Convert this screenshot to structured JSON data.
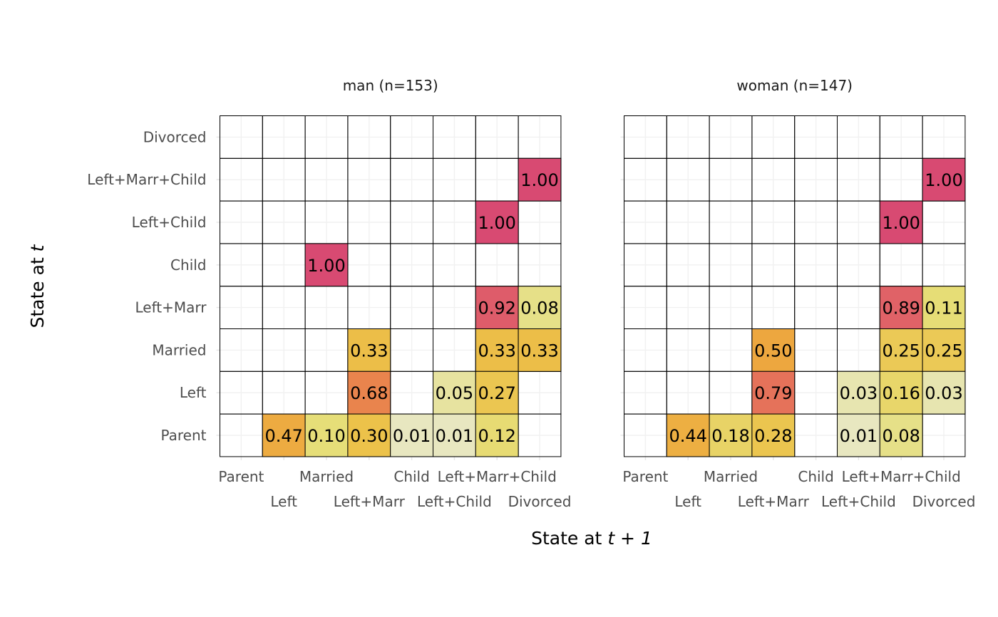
{
  "chart_data": {
    "type": "heatmap",
    "xlabel": "State at",
    "xlabel_var": "t + 1",
    "ylabel": "State at",
    "ylabel_var": "t",
    "states": [
      "Parent",
      "Left",
      "Married",
      "Left+Marr",
      "Child",
      "Left+Child",
      "Left+Marr+Child",
      "Divorced"
    ],
    "value_color_scale": {
      "0.0": "#e8e8c8",
      "0.1": "#e6de78",
      "0.3": "#ecc24a",
      "0.5": "#eda73f",
      "0.7": "#e9804f",
      "0.9": "#e06068",
      "1.0": "#d84a72"
    },
    "panels": [
      {
        "title": "man (n=153)",
        "cells": [
          {
            "from": "Left+Marr+Child",
            "to": "Divorced",
            "value": "1.00"
          },
          {
            "from": "Left+Child",
            "to": "Left+Marr+Child",
            "value": "1.00"
          },
          {
            "from": "Child",
            "to": "Married",
            "value": "1.00"
          },
          {
            "from": "Left+Marr",
            "to": "Left+Marr+Child",
            "value": "0.92"
          },
          {
            "from": "Left+Marr",
            "to": "Divorced",
            "value": "0.08"
          },
          {
            "from": "Married",
            "to": "Left+Marr",
            "value": "0.33"
          },
          {
            "from": "Married",
            "to": "Left+Marr+Child",
            "value": "0.33"
          },
          {
            "from": "Married",
            "to": "Divorced",
            "value": "0.33"
          },
          {
            "from": "Left",
            "to": "Left+Marr",
            "value": "0.68"
          },
          {
            "from": "Left",
            "to": "Left+Child",
            "value": "0.05"
          },
          {
            "from": "Left",
            "to": "Left+Marr+Child",
            "value": "0.27"
          },
          {
            "from": "Parent",
            "to": "Left",
            "value": "0.47"
          },
          {
            "from": "Parent",
            "to": "Married",
            "value": "0.10"
          },
          {
            "from": "Parent",
            "to": "Left+Marr",
            "value": "0.30"
          },
          {
            "from": "Parent",
            "to": "Child",
            "value": "0.01"
          },
          {
            "from": "Parent",
            "to": "Left+Child",
            "value": "0.01"
          },
          {
            "from": "Parent",
            "to": "Left+Marr+Child",
            "value": "0.12"
          }
        ]
      },
      {
        "title": "woman (n=147)",
        "cells": [
          {
            "from": "Left+Marr+Child",
            "to": "Divorced",
            "value": "1.00"
          },
          {
            "from": "Left+Child",
            "to": "Left+Marr+Child",
            "value": "1.00"
          },
          {
            "from": "Left+Marr",
            "to": "Left+Marr+Child",
            "value": "0.89"
          },
          {
            "from": "Left+Marr",
            "to": "Divorced",
            "value": "0.11"
          },
          {
            "from": "Married",
            "to": "Left+Marr",
            "value": "0.50"
          },
          {
            "from": "Married",
            "to": "Left+Marr+Child",
            "value": "0.25"
          },
          {
            "from": "Married",
            "to": "Divorced",
            "value": "0.25"
          },
          {
            "from": "Left",
            "to": "Left+Marr",
            "value": "0.79"
          },
          {
            "from": "Left",
            "to": "Left+Child",
            "value": "0.03"
          },
          {
            "from": "Left",
            "to": "Left+Marr+Child",
            "value": "0.16"
          },
          {
            "from": "Left",
            "to": "Divorced",
            "value": "0.03"
          },
          {
            "from": "Parent",
            "to": "Left",
            "value": "0.44"
          },
          {
            "from": "Parent",
            "to": "Married",
            "value": "0.18"
          },
          {
            "from": "Parent",
            "to": "Left+Marr",
            "value": "0.28"
          },
          {
            "from": "Parent",
            "to": "Left+Child",
            "value": "0.01"
          },
          {
            "from": "Parent",
            "to": "Left+Marr+Child",
            "value": "0.08"
          }
        ]
      }
    ]
  }
}
